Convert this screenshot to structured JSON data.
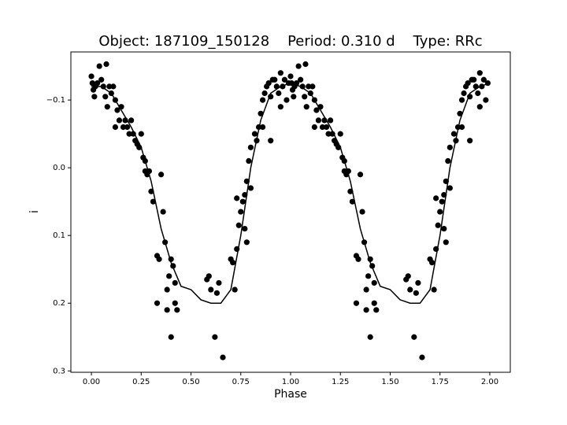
{
  "chart_data": {
    "type": "scatter",
    "title": "Object: 187109_150128    Period: 0.310 d    Type: RRc",
    "xlabel": "Phase",
    "ylabel": "i",
    "xlim": [
      -0.103,
      2.103
    ],
    "ylim": [
      0.302,
      -0.171
    ],
    "xticks": [
      {
        "value": 0,
        "label": "0.00"
      },
      {
        "value": 0.25,
        "label": "0.25"
      },
      {
        "value": 0.5,
        "label": "0.50"
      },
      {
        "value": 0.75,
        "label": "0.75"
      },
      {
        "value": 1,
        "label": "1.00"
      },
      {
        "value": 1.25,
        "label": "1.25"
      },
      {
        "value": 1.5,
        "label": "1.50"
      },
      {
        "value": 1.75,
        "label": "1.75"
      },
      {
        "value": 2,
        "label": "2.00"
      }
    ],
    "yticks": [
      {
        "value": -0.1,
        "label": "−0.1"
      },
      {
        "value": 0,
        "label": "0.0"
      },
      0.1,
      0.2,
      0.3
    ],
    "grid": false,
    "series": [
      {
        "type": "scatter",
        "color": "#000000",
        "x": [
          0.0,
          0.005,
          0.01,
          0.015,
          0.02,
          0.03,
          0.04,
          0.05,
          0.06,
          0.07,
          0.075,
          0.08,
          0.09,
          0.1,
          0.11,
          0.12,
          0.12,
          0.13,
          0.14,
          0.15,
          0.16,
          0.17,
          0.18,
          0.19,
          0.2,
          0.21,
          0.22,
          0.23,
          0.24,
          0.25,
          0.26,
          0.27,
          0.27,
          0.28,
          0.29,
          0.3,
          0.31,
          0.33,
          0.34,
          0.36,
          0.37,
          0.38,
          0.38,
          0.39,
          0.4,
          0.41,
          0.42,
          0.43,
          0.35,
          0.4,
          0.33,
          0.42,
          0.58,
          0.59,
          0.6,
          0.62,
          0.63,
          0.64,
          0.66,
          0.7,
          0.71,
          0.72,
          0.73,
          0.74,
          0.75,
          0.76,
          0.77,
          0.78,
          0.79,
          0.8,
          0.82,
          0.83,
          0.84,
          0.85,
          0.86,
          0.87,
          0.88,
          0.89,
          0.9,
          0.91,
          0.92,
          0.93,
          0.94,
          0.95,
          0.96,
          0.97,
          0.98,
          0.99,
          0.77,
          0.78,
          0.73,
          0.8,
          0.86,
          0.9,
          0.95,
          1.0,
          1.005,
          1.01,
          1.015,
          1.02,
          1.03,
          1.04,
          1.05,
          1.06,
          1.07,
          1.075,
          1.08,
          1.09,
          1.1,
          1.11,
          1.12,
          1.12,
          1.13,
          1.14,
          1.15,
          1.16,
          1.17,
          1.18,
          1.19,
          1.2,
          1.21,
          1.22,
          1.23,
          1.24,
          1.25,
          1.26,
          1.27,
          1.27,
          1.28,
          1.29,
          1.3,
          1.31,
          1.33,
          1.34,
          1.36,
          1.37,
          1.38,
          1.38,
          1.39,
          1.4,
          1.41,
          1.42,
          1.43,
          1.35,
          1.4,
          1.33,
          1.42,
          1.58,
          1.59,
          1.6,
          1.62,
          1.63,
          1.64,
          1.66,
          1.7,
          1.71,
          1.72,
          1.73,
          1.74,
          1.75,
          1.76,
          1.77,
          1.78,
          1.79,
          1.8,
          1.82,
          1.83,
          1.84,
          1.85,
          1.86,
          1.87,
          1.88,
          1.89,
          1.9,
          1.91,
          1.92,
          1.93,
          1.94,
          1.95,
          1.96,
          1.97,
          1.98,
          1.99,
          1.77,
          1.78,
          1.73,
          1.8,
          1.86,
          1.9,
          1.95
        ],
        "values": [
          -0.135,
          -0.125,
          -0.115,
          -0.105,
          -0.12,
          -0.125,
          -0.15,
          -0.13,
          -0.12,
          -0.105,
          -0.153,
          -0.09,
          -0.12,
          -0.11,
          -0.12,
          -0.1,
          -0.06,
          -0.085,
          -0.07,
          -0.09,
          -0.06,
          -0.07,
          -0.06,
          -0.05,
          -0.07,
          -0.05,
          -0.04,
          -0.035,
          -0.03,
          -0.05,
          -0.015,
          -0.01,
          0.005,
          0.01,
          0.005,
          0.035,
          0.05,
          0.13,
          0.135,
          0.065,
          0.11,
          0.18,
          0.21,
          0.16,
          0.135,
          0.145,
          0.17,
          0.21,
          0.01,
          0.25,
          0.2,
          0.2,
          0.165,
          0.16,
          0.18,
          0.25,
          0.185,
          0.17,
          0.28,
          0.135,
          0.14,
          0.18,
          0.12,
          0.085,
          0.065,
          0.05,
          0.04,
          0.02,
          -0.01,
          -0.03,
          -0.05,
          -0.04,
          -0.06,
          -0.08,
          -0.1,
          -0.11,
          -0.12,
          -0.125,
          -0.105,
          -0.13,
          -0.13,
          -0.12,
          -0.11,
          -0.14,
          -0.12,
          -0.13,
          -0.1,
          -0.125,
          0.09,
          0.11,
          0.045,
          0.03,
          -0.06,
          -0.04,
          -0.09,
          -0.135,
          -0.125,
          -0.115,
          -0.105,
          -0.12,
          -0.125,
          -0.15,
          -0.13,
          -0.12,
          -0.105,
          -0.153,
          -0.09,
          -0.12,
          -0.11,
          -0.12,
          -0.1,
          -0.06,
          -0.085,
          -0.07,
          -0.09,
          -0.06,
          -0.07,
          -0.06,
          -0.05,
          -0.07,
          -0.05,
          -0.04,
          -0.035,
          -0.03,
          -0.05,
          -0.015,
          -0.01,
          0.005,
          0.01,
          0.005,
          0.035,
          0.05,
          0.13,
          0.135,
          0.065,
          0.11,
          0.18,
          0.21,
          0.16,
          0.135,
          0.145,
          0.17,
          0.21,
          0.01,
          0.25,
          0.2,
          0.2,
          0.165,
          0.16,
          0.18,
          0.25,
          0.185,
          0.17,
          0.28,
          0.135,
          0.14,
          0.18,
          0.12,
          0.085,
          0.065,
          0.05,
          0.04,
          0.02,
          -0.01,
          -0.03,
          -0.05,
          -0.04,
          -0.06,
          -0.08,
          -0.1,
          -0.11,
          -0.12,
          -0.125,
          -0.105,
          -0.13,
          -0.13,
          -0.12,
          -0.11,
          -0.14,
          -0.12,
          -0.13,
          -0.1,
          -0.125,
          0.09,
          0.11,
          0.045,
          0.03,
          -0.06,
          -0.04,
          -0.09
        ]
      },
      {
        "type": "line",
        "color": "#000000",
        "x": [
          0,
          0.05,
          0.1,
          0.15,
          0.2,
          0.25,
          0.3,
          0.35,
          0.4,
          0.45,
          0.5,
          0.55,
          0.6,
          0.65,
          0.7,
          0.75,
          0.8,
          0.85,
          0.9,
          0.95,
          1,
          1.05,
          1.1,
          1.15,
          1.2,
          1.25,
          1.3,
          1.35,
          1.4,
          1.45,
          1.5,
          1.55,
          1.6,
          1.65,
          1.7,
          1.75,
          1.8,
          1.85,
          1.9,
          1.95,
          2
        ],
        "values": [
          -0.12,
          -0.12,
          -0.11,
          -0.085,
          -0.06,
          -0.03,
          0.02,
          0.09,
          0.14,
          0.175,
          0.18,
          0.195,
          0.2,
          0.2,
          0.18,
          0.1,
          0,
          -0.07,
          -0.11,
          -0.12,
          -0.125,
          -0.12,
          -0.11,
          -0.085,
          -0.06,
          -0.03,
          0.02,
          0.09,
          0.14,
          0.175,
          0.18,
          0.195,
          0.2,
          0.2,
          0.18,
          0.1,
          0,
          -0.07,
          -0.11,
          -0.12,
          -0.125
        ]
      }
    ]
  }
}
